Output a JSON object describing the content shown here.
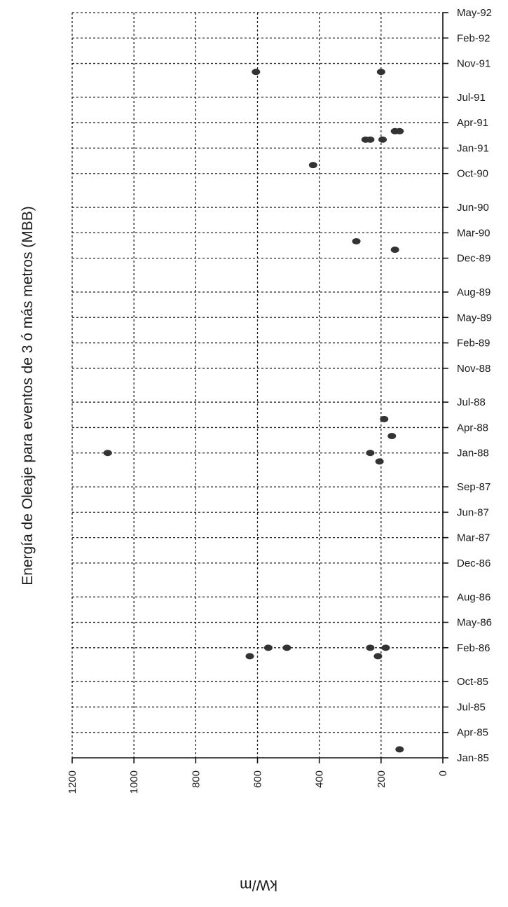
{
  "chart_data": {
    "type": "scatter",
    "title": "Energía de Oleaje para eventos de 3 ó más metros (MBB)",
    "xlabel": "",
    "ylabel": "kW/m",
    "energy_axis": {
      "range": [
        0,
        1200
      ],
      "reversed": true,
      "ticks": [
        "0",
        "200",
        "400",
        "600",
        "800",
        "1000",
        "1200"
      ]
    },
    "date_axis": {
      "tick_labels": [
        "Jan-85",
        "Apr-85",
        "Jul-85",
        "Oct-85",
        "Feb-86",
        "May-86",
        "Aug-86",
        "Dec-86",
        "Mar-87",
        "Jun-87",
        "Sep-87",
        "Jan-88",
        "Apr-88",
        "Jul-88",
        "Nov-88",
        "Feb-89",
        "May-89",
        "Aug-89",
        "Dec-89",
        "Mar-90",
        "Jun-90",
        "Oct-90",
        "Jan-91",
        "Apr-91",
        "Jul-91",
        "Nov-91",
        "Feb-92",
        "May-92"
      ]
    },
    "grid": true,
    "marker_color": "#333333",
    "points": [
      {
        "date": "Feb-85",
        "energy": 140
      },
      {
        "date": "Jan-86",
        "energy": 625
      },
      {
        "date": "Feb-86",
        "energy": 565
      },
      {
        "date": "Feb-86",
        "energy": 505
      },
      {
        "date": "Feb-86",
        "energy": 235
      },
      {
        "date": "Jan-86",
        "energy": 210
      },
      {
        "date": "Feb-86",
        "energy": 185
      },
      {
        "date": "Jan-88",
        "energy": 1085
      },
      {
        "date": "Jan-88",
        "energy": 235
      },
      {
        "date": "Dec-87",
        "energy": 205
      },
      {
        "date": "Mar-88",
        "energy": 165
      },
      {
        "date": "May-88",
        "energy": 190
      },
      {
        "date": "Feb-90",
        "energy": 280
      },
      {
        "date": "Jan-90",
        "energy": 155
      },
      {
        "date": "Nov-90",
        "energy": 420
      },
      {
        "date": "Feb-91",
        "energy": 250
      },
      {
        "date": "Feb-91",
        "energy": 235
      },
      {
        "date": "Feb-91",
        "energy": 195
      },
      {
        "date": "Mar-91",
        "energy": 155
      },
      {
        "date": "Mar-91",
        "energy": 140
      },
      {
        "date": "Oct-91",
        "energy": 605
      },
      {
        "date": "Oct-91",
        "energy": 200
      }
    ]
  }
}
